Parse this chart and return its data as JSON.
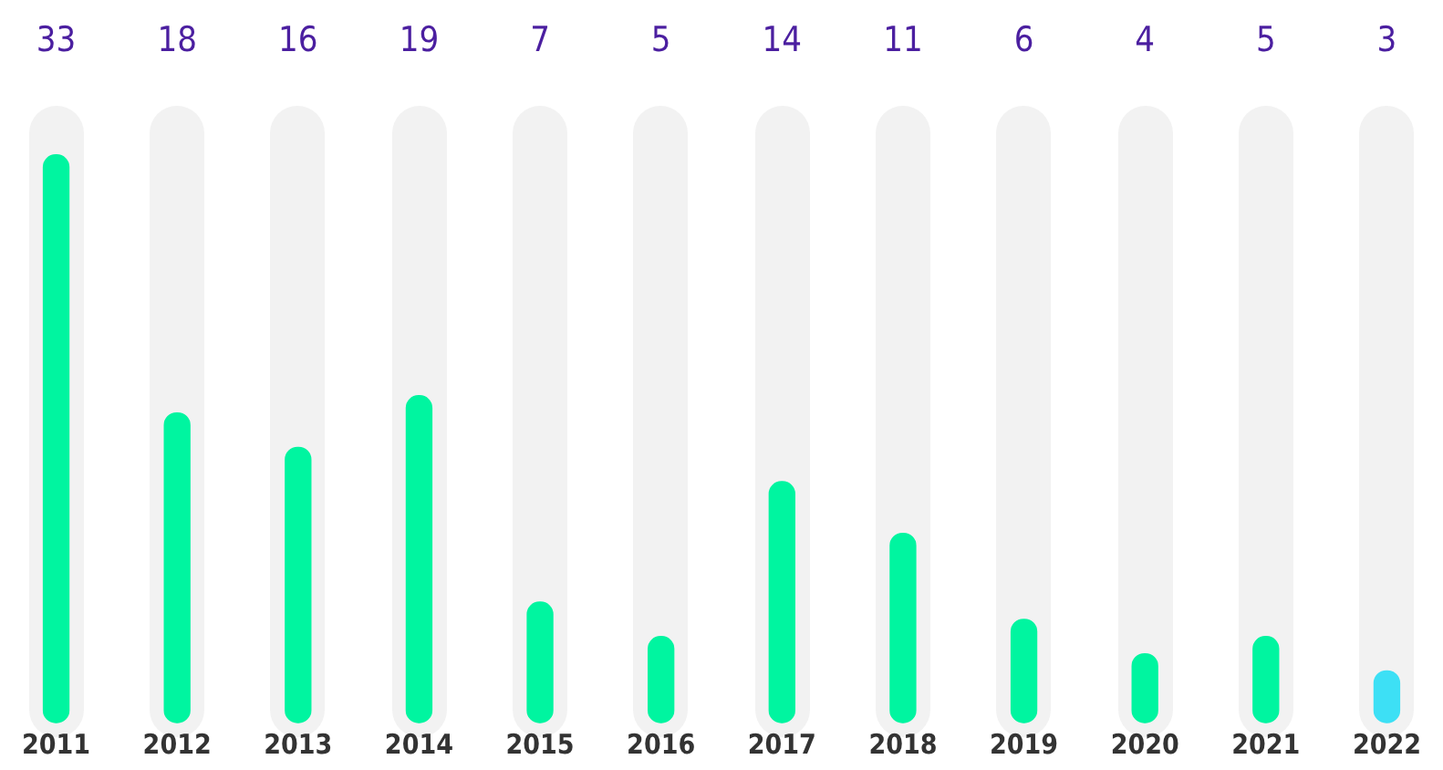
{
  "chart_data": {
    "type": "bar",
    "categories": [
      "2011",
      "2012",
      "2013",
      "2014",
      "2015",
      "2016",
      "2017",
      "2018",
      "2019",
      "2020",
      "2021",
      "2022"
    ],
    "values": [
      33,
      18,
      16,
      19,
      7,
      5,
      14,
      11,
      6,
      4,
      5,
      3
    ],
    "colors": [
      "#00f5a0",
      "#00f5a0",
      "#00f5a0",
      "#00f5a0",
      "#00f5a0",
      "#00f5a0",
      "#00f5a0",
      "#00f5a0",
      "#00f5a0",
      "#00f5a0",
      "#00f5a0",
      "#3de0f5"
    ],
    "data_labels": true,
    "grid": false,
    "legend": false,
    "tick_labels": "x"
  }
}
